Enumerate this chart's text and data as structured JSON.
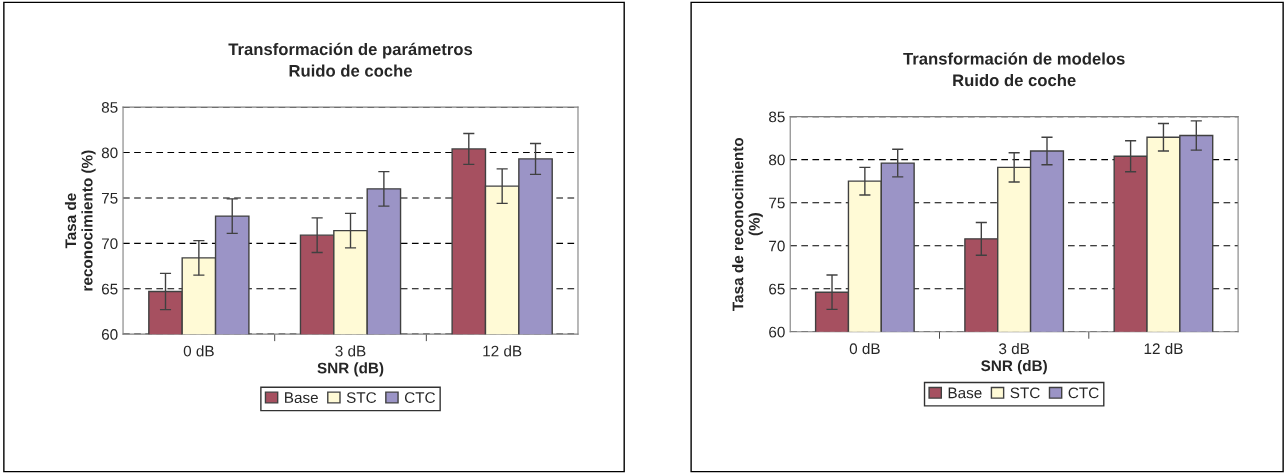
{
  "chart_data": [
    {
      "type": "bar",
      "title": "Transformación de parámetros\nRuido de coche",
      "xlabel": "SNR (dB)",
      "ylabel": "Tasa de\nreconocimiento (%)",
      "categories": [
        "0 dB",
        "3 dB",
        "12 dB"
      ],
      "series": [
        {
          "name": "Base",
          "color": "#a65060",
          "values": [
            64.7,
            70.9,
            80.4
          ],
          "errors": [
            2,
            1.9,
            1.7
          ]
        },
        {
          "name": "STC",
          "color": "#fffad6",
          "values": [
            68.4,
            71.4,
            76.3
          ],
          "errors": [
            1.9,
            1.9,
            1.9
          ]
        },
        {
          "name": "CTC",
          "color": "#9b94c6",
          "values": [
            73.0,
            76.0,
            79.3
          ],
          "errors": [
            1.9,
            1.9,
            1.7
          ]
        }
      ],
      "ylim": [
        60,
        85
      ],
      "yticks": [
        60,
        65,
        70,
        75,
        80,
        85
      ],
      "grid": "y",
      "legend": "bottom"
    },
    {
      "type": "bar",
      "title": "Transformación de modelos\nRuido de coche",
      "xlabel": "SNR (dB)",
      "ylabel": "Tasa de reconocimiento\n(%)",
      "categories": [
        "0 dB",
        "3 dB",
        "12 dB"
      ],
      "series": [
        {
          "name": "Base",
          "color": "#a65060",
          "values": [
            64.6,
            70.8,
            80.4
          ],
          "errors": [
            2,
            1.9,
            1.8
          ]
        },
        {
          "name": "STC",
          "color": "#fffad6",
          "values": [
            77.5,
            79.1,
            82.6
          ],
          "errors": [
            1.6,
            1.7,
            1.6
          ]
        },
        {
          "name": "CTC",
          "color": "#9b94c6",
          "values": [
            79.6,
            81.0,
            82.8
          ],
          "errors": [
            1.6,
            1.6,
            1.7
          ]
        }
      ],
      "ylim": [
        60,
        85
      ],
      "yticks": [
        60,
        65,
        70,
        75,
        80,
        85
      ],
      "grid": "y",
      "legend": "bottom"
    }
  ]
}
